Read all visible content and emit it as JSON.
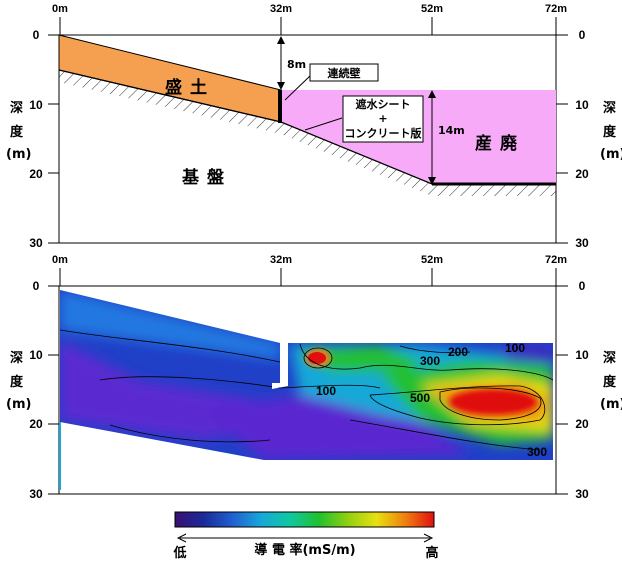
{
  "top": {
    "x_ticks": [
      "0m",
      "32m",
      "52m",
      "72m"
    ],
    "y_ticks": [
      "0",
      "10",
      "20",
      "30"
    ],
    "y_label": [
      "深",
      "度",
      "(m)"
    ],
    "regions": {
      "fill": "盛土",
      "bedrock": "基盤",
      "waste": "産廃"
    },
    "annotations": {
      "wall": "連続壁",
      "sheet_line1": "遮水シート",
      "sheet_line2": "+",
      "sheet_line3": "コンクリート版",
      "depth_8": "8m",
      "depth_14": "14m"
    },
    "colors": {
      "fill": "#f5a050",
      "waste": "#f7aaf7"
    }
  },
  "bottom": {
    "x_ticks": [
      "0m",
      "32m",
      "52m",
      "72m"
    ],
    "y_ticks": [
      "0",
      "10",
      "20",
      "30"
    ],
    "y_label": [
      "深",
      "度",
      "(m)"
    ],
    "contour_labels": [
      "100",
      "200",
      "300",
      "500",
      "100",
      "300"
    ]
  },
  "colorbar": {
    "low": "低",
    "high": "高",
    "label": "導 電 率(mS/m)",
    "colors": [
      "#3a1070",
      "#1a2a9a",
      "#2060d0",
      "#18a8d8",
      "#10c8a0",
      "#20c030",
      "#90d010",
      "#e8e010",
      "#f08010",
      "#e01010"
    ]
  }
}
